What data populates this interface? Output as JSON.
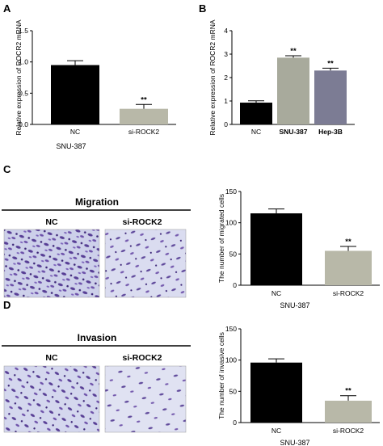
{
  "panels": {
    "a": "A",
    "b": "B",
    "c": "C",
    "d": "D"
  },
  "images": {
    "migration": {
      "title": "Migration",
      "labels": [
        "NC",
        "si-ROCK2"
      ]
    },
    "invasion": {
      "title": "Invasion",
      "labels": [
        "NC",
        "si-ROCK2"
      ]
    }
  },
  "chart_data": [
    {
      "id": "A",
      "type": "bar",
      "categories": [
        "NC",
        "si-ROCK2"
      ],
      "values": [
        0.95,
        0.25
      ],
      "errors": [
        0.07,
        0.07
      ],
      "significance": [
        "",
        "**"
      ],
      "bar_colors": [
        "#000000",
        "#b8b8a8"
      ],
      "ylabel": "Relative expression of ROCR2 mRNA",
      "xlabel": "SNU-387",
      "ylim": [
        0,
        1.5
      ],
      "yticks": [
        0.0,
        0.5,
        1.0,
        1.5
      ],
      "ytick_labels": [
        "0.0",
        "0.5",
        "1.0",
        "1.5"
      ]
    },
    {
      "id": "B",
      "type": "bar",
      "categories": [
        "NC",
        "SNU-387",
        "Hep-3B"
      ],
      "values": [
        0.93,
        2.85,
        2.3
      ],
      "errors": [
        0.08,
        0.08,
        0.1
      ],
      "significance": [
        "",
        "**",
        "**"
      ],
      "bar_colors": [
        "#000000",
        "#a8aa9c",
        "#7c7c94"
      ],
      "ylabel": "Relative expression of ROCR2 mRNA",
      "xlabel": "",
      "ylim": [
        0,
        4
      ],
      "yticks": [
        0,
        1,
        2,
        3,
        4
      ],
      "ytick_labels": [
        "0",
        "1",
        "2",
        "3",
        "4"
      ]
    },
    {
      "id": "C",
      "type": "bar",
      "categories": [
        "NC",
        "si-ROCK2"
      ],
      "values": [
        115,
        55
      ],
      "errors": [
        7,
        7
      ],
      "significance": [
        "",
        "**"
      ],
      "bar_colors": [
        "#000000",
        "#b8b8a8"
      ],
      "ylabel": "The number of migrated cells",
      "xlabel": "SNU-387",
      "ylim": [
        0,
        150
      ],
      "yticks": [
        0,
        50,
        100,
        150
      ],
      "ytick_labels": [
        "0",
        "50",
        "100",
        "150"
      ]
    },
    {
      "id": "D",
      "type": "bar",
      "categories": [
        "NC",
        "si-ROCK2"
      ],
      "values": [
        96,
        35
      ],
      "errors": [
        6,
        8
      ],
      "significance": [
        "",
        "**"
      ],
      "bar_colors": [
        "#000000",
        "#b8b8a8"
      ],
      "ylabel": "The number of invasive cells",
      "xlabel": "SNU-387",
      "ylim": [
        0,
        150
      ],
      "yticks": [
        0,
        50,
        100,
        150
      ],
      "ytick_labels": [
        "0",
        "50",
        "100",
        "150"
      ]
    }
  ]
}
